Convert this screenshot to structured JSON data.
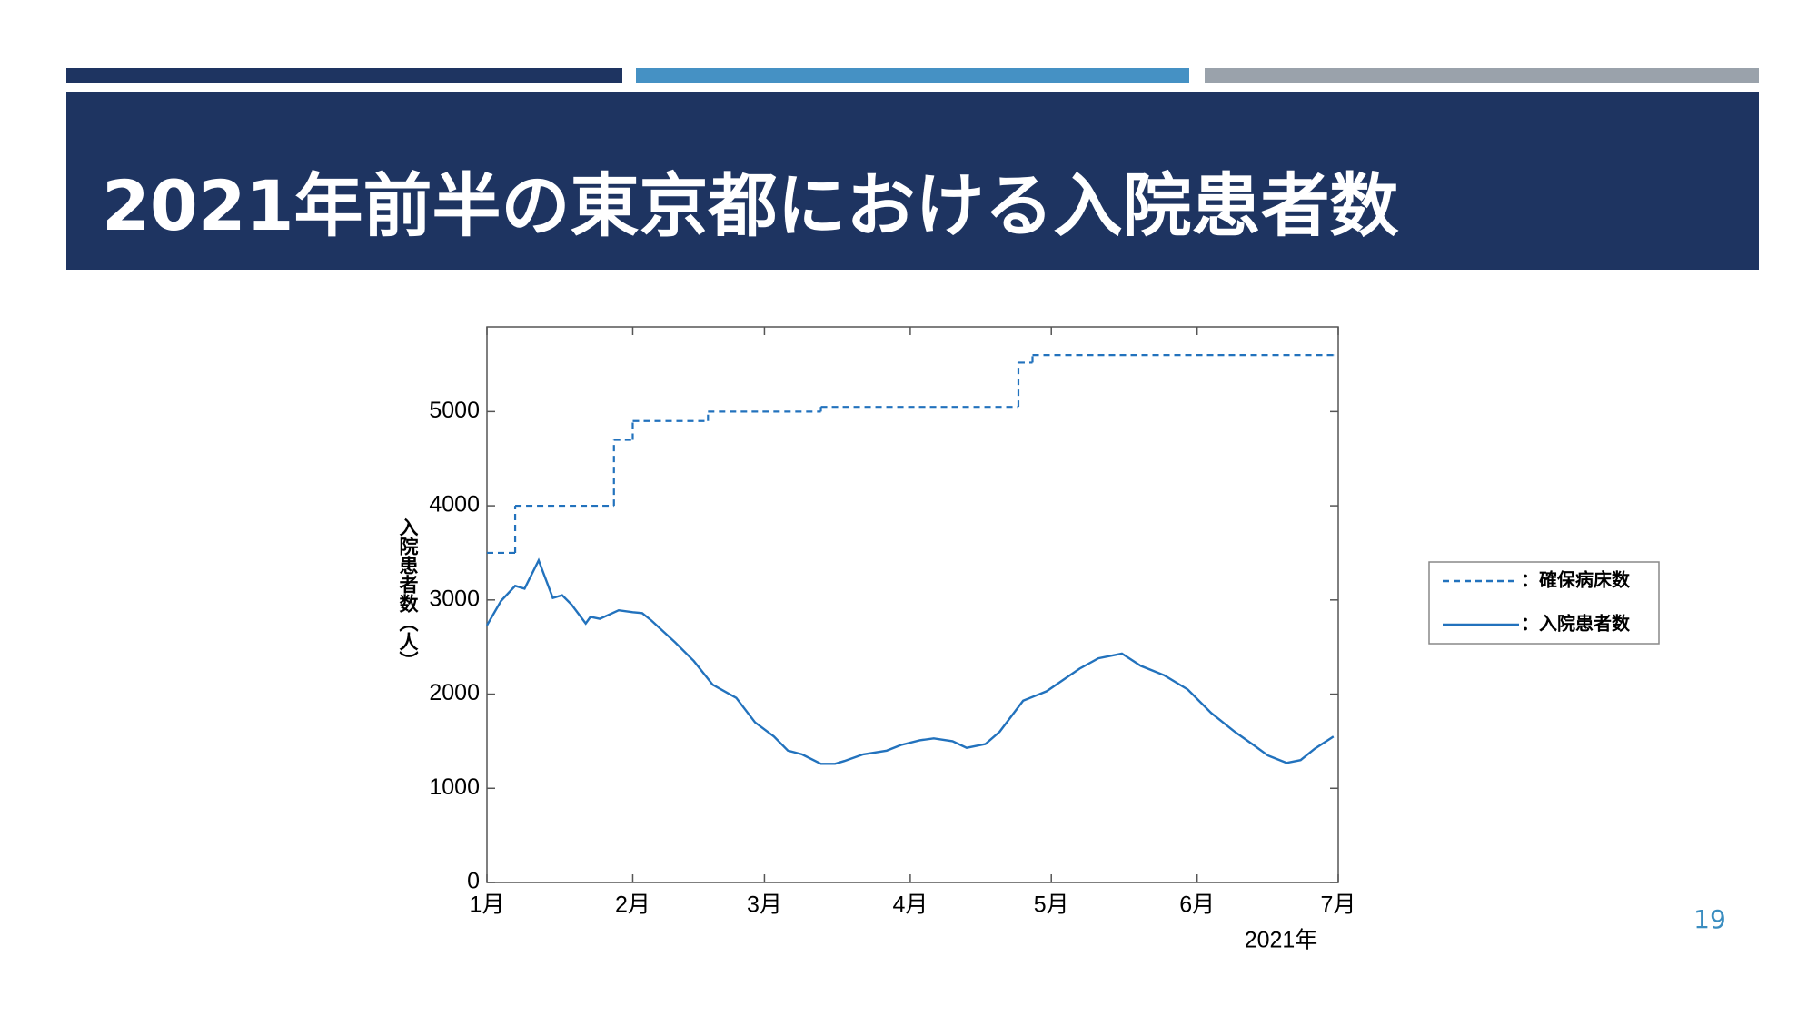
{
  "slide": {
    "title": "2021年前半の東京都における入院患者数",
    "page_number": "19"
  },
  "chart_data": {
    "type": "line",
    "ylabel": "入院患者数（人）",
    "xlabel": "2021年",
    "xlim": [
      0,
      181
    ],
    "xticks": [
      {
        "value": 0,
        "label": "1月"
      },
      {
        "value": 31,
        "label": "2月"
      },
      {
        "value": 59,
        "label": "3月"
      },
      {
        "value": 90,
        "label": "4月"
      },
      {
        "value": 120,
        "label": "5月"
      },
      {
        "value": 151,
        "label": "6月"
      },
      {
        "value": 181,
        "label": "7月"
      }
    ],
    "ylim": [
      0,
      5900
    ],
    "yticks": [
      0,
      1000,
      2000,
      3000,
      4000,
      5000
    ],
    "grid": false,
    "legend": "outside-right",
    "series": [
      {
        "name": "：確保病床数",
        "color": "#2272bd",
        "style": "dashed",
        "drawstyle": "steps-post",
        "x": [
          0,
          6,
          27,
          31,
          47,
          71,
          113,
          116,
          180
        ],
        "values": [
          3500,
          4000,
          4700,
          4900,
          5000,
          5050,
          5520,
          5600,
          5600
        ]
      },
      {
        "name": "：入院患者数",
        "color": "#2272bd",
        "style": "solid",
        "x": [
          0,
          3,
          6,
          8,
          11,
          14,
          16,
          18,
          21,
          22,
          24,
          28,
          31,
          33,
          35,
          40,
          44,
          48,
          53,
          57,
          61,
          64,
          67,
          71,
          74,
          76,
          80,
          85,
          88,
          92,
          95,
          99,
          102,
          106,
          109,
          114,
          119,
          126,
          130,
          135,
          139,
          144,
          149,
          154,
          159,
          163,
          166,
          170,
          173,
          176,
          180
        ],
        "values": [
          2730,
          2990,
          3150,
          3120,
          3420,
          3020,
          3050,
          2950,
          2750,
          2820,
          2800,
          2890,
          2870,
          2860,
          2780,
          2550,
          2350,
          2100,
          1960,
          1700,
          1550,
          1400,
          1360,
          1260,
          1260,
          1290,
          1360,
          1400,
          1460,
          1510,
          1530,
          1500,
          1430,
          1470,
          1600,
          1930,
          2030,
          2270,
          2380,
          2430,
          2300,
          2200,
          2050,
          1800,
          1600,
          1460,
          1350,
          1270,
          1300,
          1420,
          1550
        ]
      }
    ]
  }
}
